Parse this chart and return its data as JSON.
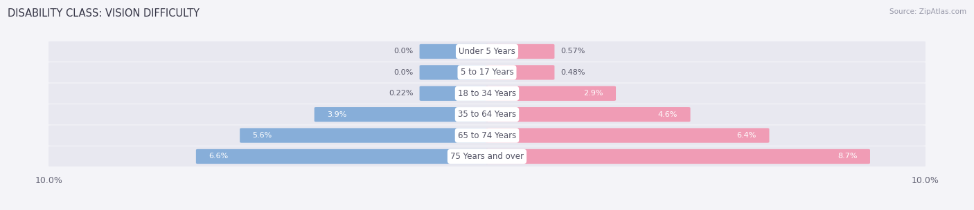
{
  "title": "DISABILITY CLASS: VISION DIFFICULTY",
  "source": "Source: ZipAtlas.com",
  "categories": [
    "Under 5 Years",
    "5 to 17 Years",
    "18 to 34 Years",
    "35 to 64 Years",
    "65 to 74 Years",
    "75 Years and over"
  ],
  "male_values": [
    0.0,
    0.0,
    0.22,
    3.9,
    5.6,
    6.6
  ],
  "female_values": [
    0.57,
    0.48,
    2.9,
    4.6,
    6.4,
    8.7
  ],
  "male_labels": [
    "0.0%",
    "0.0%",
    "0.22%",
    "3.9%",
    "5.6%",
    "6.6%"
  ],
  "female_labels": [
    "0.57%",
    "0.48%",
    "2.9%",
    "4.6%",
    "6.4%",
    "8.7%"
  ],
  "male_color": "#87aed9",
  "female_color": "#f09cb5",
  "bar_bg_color": "#e2e2ea",
  "row_bg_color": "#e8e8f0",
  "label_pill_color": "#ffffff",
  "text_dark": "#555566",
  "text_white": "#ffffff",
  "xlim": 10.0,
  "bar_height": 0.62,
  "min_bar_width": 1.5,
  "background_color": "#f4f4f8",
  "title_fontsize": 10.5,
  "label_fontsize": 8.0,
  "cat_fontsize": 8.5,
  "axis_label_fontsize": 9,
  "source_fontsize": 7.5
}
